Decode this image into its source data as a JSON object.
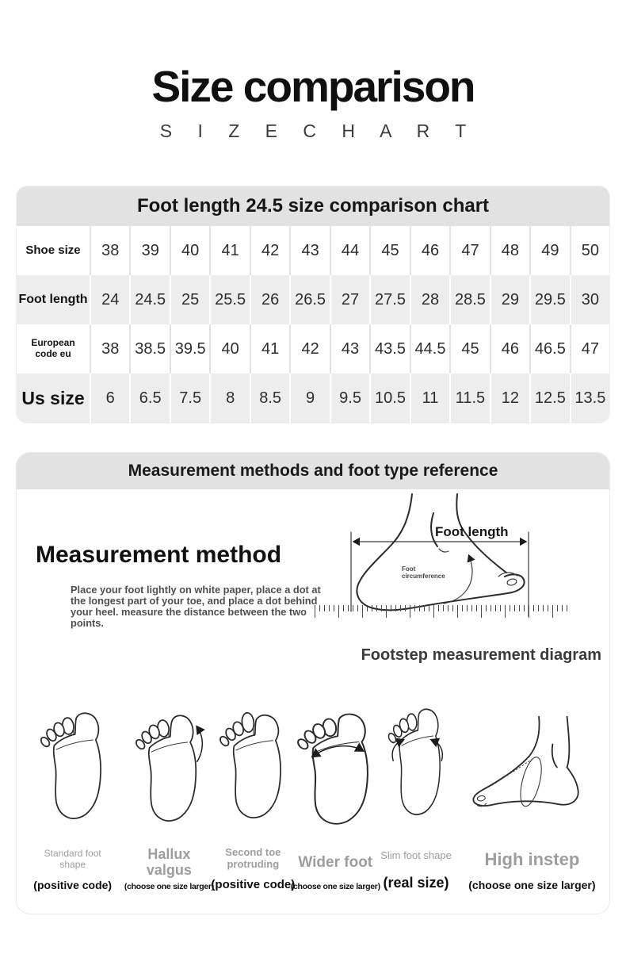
{
  "page": {
    "title": "Size comparison",
    "subtitle": "S I Z E   C H A R T"
  },
  "size_table": {
    "header": "Foot length 24.5 size comparison chart",
    "rows": [
      {
        "label": "Shoe size",
        "values": [
          "38",
          "39",
          "40",
          "41",
          "42",
          "43",
          "44",
          "45",
          "46",
          "47",
          "48",
          "49",
          "50"
        ]
      },
      {
        "label": "Foot length",
        "values": [
          "24",
          "24.5",
          "25",
          "25.5",
          "26",
          "26.5",
          "27",
          "27.5",
          "28",
          "28.5",
          "29",
          "29.5",
          "30"
        ]
      },
      {
        "label": "European code eu",
        "values": [
          "38",
          "38.5",
          "39.5",
          "40",
          "41",
          "42",
          "43",
          "43.5",
          "44.5",
          "45",
          "46",
          "46.5",
          "47"
        ]
      },
      {
        "label": "Us size",
        "values": [
          "6",
          "6.5",
          "7.5",
          "8",
          "8.5",
          "9",
          "9.5",
          "10.5",
          "11",
          "11.5",
          "12",
          "12.5",
          "13.5"
        ]
      }
    ]
  },
  "measurement": {
    "header": "Measurement methods and foot type reference",
    "method_title": "Measurement method",
    "method_text": "Place your foot lightly on white paper, place a dot at the longest part of your toe, and place a dot behind your heel. measure the distance between the two points.",
    "foot_length_label": "Foot length",
    "foot_circumference_label": "Foot circumference",
    "caption": "Footstep measurement diagram",
    "foot_types": [
      {
        "name": "Standard foot shape",
        "note": "(positive code)"
      },
      {
        "name": "Hallux valgus",
        "note": "(choose one size larger)"
      },
      {
        "name": "Second toe protruding",
        "note": "(positive code)"
      },
      {
        "name": "Wider foot",
        "note": "(choose one size larger)"
      },
      {
        "name": "Slim foot shape",
        "note": "(real size)"
      },
      {
        "name": "High instep",
        "note": "(choose one size larger)"
      }
    ]
  },
  "colors": {
    "band_gray": "#e2e2e2",
    "stripe_gray": "#ededed",
    "text_dark": "#111111",
    "label_gray": "#9d9d9d"
  }
}
